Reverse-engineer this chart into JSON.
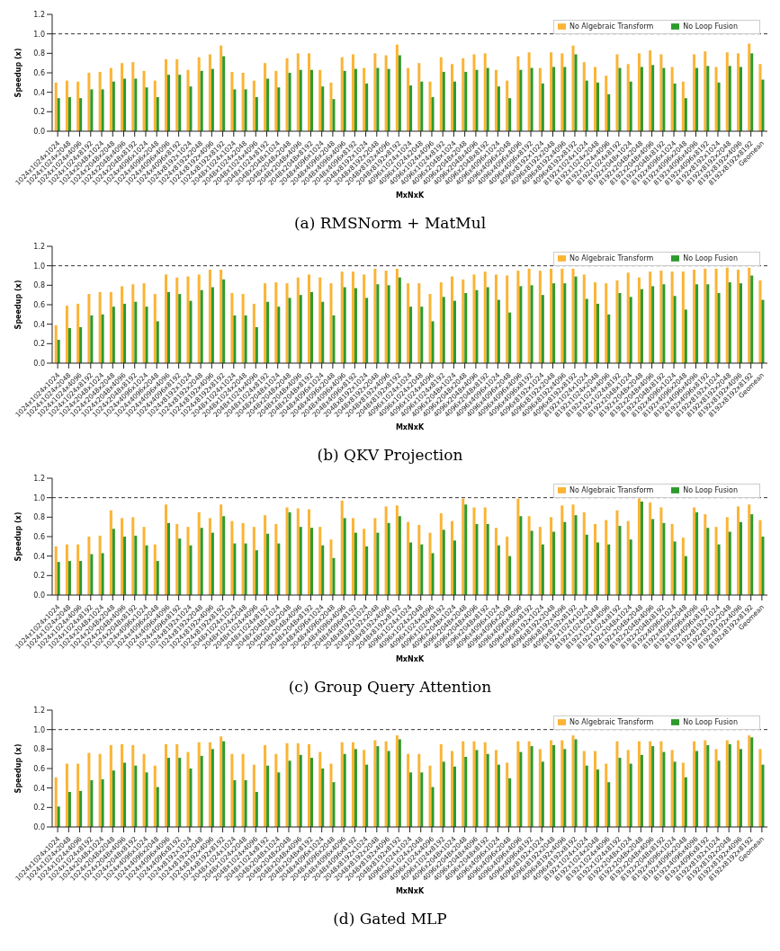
{
  "chart_data": [
    {
      "type": "bar",
      "title": "(a) RMSNorm + MatMul",
      "xlabel": "MxNxK",
      "ylabel": "Speedup (x)",
      "legend": "top right",
      "grid": false,
      "categories": [
        "1024x1024x1024",
        "1024x1024x2048",
        "1024x1024x4096",
        "1024x1024x8192",
        "1024x2048x1024",
        "1024x2048x2048",
        "1024x2048x4096",
        "1024x2048x8192",
        "1024x4096x1024",
        "1024x4096x2048",
        "1024x4096x4096",
        "1024x4096x8192",
        "1024x8192x1024",
        "1024x8192x2048",
        "1024x8192x4096",
        "1024x8192x8192",
        "2048x1024x1024",
        "2048x1024x2048",
        "2048x1024x4096",
        "2048x1024x8192",
        "2048x2048x1024",
        "2048x2048x2048",
        "2048x2048x4096",
        "2048x2048x8192",
        "2048x4096x1024",
        "2048x4096x2048",
        "2048x4096x4096",
        "2048x4096x8192",
        "2048x8192x1024",
        "2048x8192x2048",
        "2048x8192x4096",
        "2048x8192x8192",
        "4096x1024x1024",
        "4096x1024x2048",
        "4096x1024x4096",
        "4096x1024x8192",
        "4096x2048x1024",
        "4096x2048x2048",
        "4096x2048x4096",
        "4096x2048x8192",
        "4096x4096x1024",
        "4096x4096x2048",
        "4096x4096x4096",
        "4096x4096x8192",
        "4096x8192x1024",
        "4096x8192x2048",
        "4096x8192x4096",
        "4096x8192x8192",
        "8192x1024x1024",
        "8192x1024x2048",
        "8192x1024x4096",
        "8192x1024x8192",
        "8192x2048x1024",
        "8192x2048x2048",
        "8192x2048x4096",
        "8192x2048x8192",
        "8192x4096x1024",
        "8192x4096x2048",
        "8192x4096x4096",
        "8192x4096x8192",
        "8192x8192x1024",
        "8192x8192x2048",
        "8192x8192x4096",
        "8192x8192x8192",
        "Geomean"
      ],
      "series": [
        {
          "name": "No Algebraic Transform",
          "color": "#fbb434",
          "values": [
            0.5,
            0.52,
            0.51,
            0.6,
            0.61,
            0.65,
            0.7,
            0.71,
            0.62,
            0.52,
            0.74,
            0.74,
            0.63,
            0.76,
            0.79,
            0.88,
            0.61,
            0.6,
            0.52,
            0.7,
            0.62,
            0.75,
            0.8,
            0.8,
            0.63,
            0.5,
            0.76,
            0.79,
            0.65,
            0.8,
            0.78,
            0.89,
            0.65,
            0.7,
            0.51,
            0.76,
            0.69,
            0.75,
            0.79,
            0.8,
            0.63,
            0.52,
            0.77,
            0.81,
            0.65,
            0.81,
            0.8,
            0.88,
            0.71,
            0.66,
            0.57,
            0.79,
            0.69,
            0.8,
            0.83,
            0.79,
            0.66,
            0.51,
            0.79,
            0.82,
            0.66,
            0.81,
            0.8,
            0.9,
            0.69
          ]
        },
        {
          "name": "No Loop Fusion",
          "color": "#2e9a2e",
          "values": [
            0.34,
            0.35,
            0.34,
            0.43,
            0.43,
            0.51,
            0.54,
            0.54,
            0.45,
            0.35,
            0.58,
            0.58,
            0.46,
            0.62,
            0.64,
            0.77,
            0.43,
            0.43,
            0.35,
            0.54,
            0.45,
            0.6,
            0.63,
            0.63,
            0.46,
            0.33,
            0.62,
            0.64,
            0.49,
            0.65,
            0.64,
            0.78,
            0.47,
            0.51,
            0.35,
            0.61,
            0.51,
            0.61,
            0.63,
            0.65,
            0.46,
            0.34,
            0.63,
            0.65,
            0.49,
            0.66,
            0.66,
            0.79,
            0.52,
            0.5,
            0.38,
            0.65,
            0.51,
            0.66,
            0.68,
            0.65,
            0.49,
            0.34,
            0.65,
            0.67,
            0.5,
            0.67,
            0.66,
            0.8,
            0.53
          ]
        }
      ],
      "ylim": [
        0,
        1.2
      ],
      "yticks": [
        {
          "value": 0,
          "label": "0.0"
        },
        0.2,
        0.4,
        0.6,
        0.8,
        {
          "value": 1,
          "label": "1.0"
        },
        {
          "value": 1.2,
          "label": "1.2"
        }
      ],
      "ref_lines": [
        {
          "axis": "y",
          "value": 1,
          "color": "#333333",
          "line_style": "dashed"
        }
      ]
    },
    {
      "type": "bar",
      "title": "(b) QKV Projection",
      "xlabel": "MxNxK",
      "ylabel": "Speedup (x)",
      "legend": "top right",
      "grid": false,
      "categories": [
        "1024x1024x1024",
        "1024x1024x2048",
        "1024x1024x4096",
        "1024x1024x8192",
        "1024x2048x1024",
        "1024x2048x2048",
        "1024x2048x4096",
        "1024x2048x8192",
        "1024x4096x1024",
        "1024x4096x2048",
        "1024x4096x4096",
        "1024x4096x8192",
        "1024x8192x1024",
        "1024x8192x2048",
        "1024x8192x4096",
        "1024x8192x8192",
        "2048x1024x1024",
        "2048x1024x2048",
        "2048x1024x4096",
        "2048x1024x8192",
        "2048x2048x1024",
        "2048x2048x2048",
        "2048x2048x4096",
        "2048x2048x8192",
        "2048x4096x1024",
        "2048x4096x2048",
        "2048x4096x4096",
        "2048x4096x8192",
        "2048x8192x1024",
        "2048x8192x2048",
        "2048x8192x4096",
        "2048x8192x8192",
        "4096x1024x1024",
        "4096x1024x2048",
        "4096x1024x4096",
        "4096x1024x8192",
        "4096x2048x1024",
        "4096x2048x2048",
        "4096x2048x4096",
        "4096x2048x8192",
        "4096x4096x1024",
        "4096x4096x2048",
        "4096x4096x4096",
        "4096x4096x8192",
        "4096x8192x1024",
        "4096x8192x2048",
        "4096x8192x4096",
        "4096x8192x8192",
        "8192x1024x1024",
        "8192x1024x2048",
        "8192x1024x4096",
        "8192x1024x8192",
        "8192x2048x1024",
        "8192x2048x2048",
        "8192x2048x4096",
        "8192x2048x8192",
        "8192x4096x1024",
        "8192x4096x2048",
        "8192x4096x4096",
        "8192x4096x8192",
        "8192x8192x1024",
        "8192x8192x2048",
        "8192x8192x4096",
        "8192x8192x8192",
        "Geomean"
      ],
      "series": [
        {
          "name": "No Algebraic Transform",
          "color": "#fbb434",
          "values": [
            0.39,
            0.59,
            0.61,
            0.71,
            0.73,
            0.73,
            0.79,
            0.81,
            0.82,
            0.71,
            0.91,
            0.88,
            0.89,
            0.91,
            0.96,
            0.96,
            0.72,
            0.71,
            0.61,
            0.82,
            0.83,
            0.82,
            0.88,
            0.91,
            0.88,
            0.82,
            0.94,
            0.94,
            0.91,
            0.97,
            0.95,
            0.97,
            0.82,
            0.82,
            0.71,
            0.83,
            0.89,
            0.86,
            0.91,
            0.94,
            0.91,
            0.9,
            0.95,
            0.97,
            0.95,
            0.97,
            0.97,
            0.97,
            0.91,
            0.83,
            0.82,
            0.85,
            0.93,
            0.88,
            0.94,
            0.95,
            0.94,
            0.94,
            0.96,
            0.97,
            0.97,
            0.98,
            0.96,
            0.98,
            0.85
          ]
        },
        {
          "name": "No Loop Fusion",
          "color": "#2e9a2e",
          "values": [
            0.24,
            0.36,
            0.37,
            0.49,
            0.5,
            0.58,
            0.61,
            0.63,
            0.58,
            0.43,
            0.73,
            0.71,
            0.64,
            0.75,
            0.78,
            0.86,
            0.49,
            0.49,
            0.37,
            0.63,
            0.58,
            0.67,
            0.7,
            0.73,
            0.63,
            0.49,
            0.78,
            0.77,
            0.67,
            0.81,
            0.8,
            0.88,
            0.58,
            0.58,
            0.43,
            0.68,
            0.64,
            0.72,
            0.75,
            0.78,
            0.65,
            0.52,
            0.79,
            0.8,
            0.7,
            0.82,
            0.82,
            0.89,
            0.66,
            0.61,
            0.5,
            0.72,
            0.68,
            0.76,
            0.79,
            0.81,
            0.69,
            0.55,
            0.81,
            0.81,
            0.72,
            0.83,
            0.82,
            0.9,
            0.65
          ]
        }
      ],
      "ylim": [
        0,
        1.2
      ],
      "yticks": [
        {
          "value": 0,
          "label": "0.0"
        },
        0.2,
        0.4,
        0.6,
        0.8,
        {
          "value": 1,
          "label": "1.0"
        },
        {
          "value": 1.2,
          "label": "1.2"
        }
      ],
      "ref_lines": [
        {
          "axis": "y",
          "value": 1,
          "color": "#333333",
          "line_style": "dashed"
        }
      ]
    },
    {
      "type": "bar",
      "title": "(c) Group Query Attention",
      "xlabel": "MxNxK",
      "ylabel": "Speedup (x)",
      "legend": "top right",
      "grid": false,
      "categories": [
        "1024x1024x1024",
        "1024x1024x2048",
        "1024x1024x4096",
        "1024x1024x8192",
        "1024x2048x1024",
        "1024x2048x2048",
        "1024x2048x4096",
        "1024x2048x8192",
        "1024x4096x1024",
        "1024x4096x2048",
        "1024x4096x4096",
        "1024x4096x8192",
        "1024x8192x1024",
        "1024x8192x2048",
        "1024x8192x4096",
        "1024x8192x8192",
        "2048x1024x1024",
        "2048x1024x2048",
        "2048x1024x4096",
        "2048x1024x8192",
        "2048x2048x1024",
        "2048x2048x2048",
        "2048x2048x4096",
        "2048x2048x8192",
        "2048x4096x1024",
        "2048x4096x2048",
        "2048x4096x4096",
        "2048x4096x8192",
        "2048x8192x1024",
        "2048x8192x2048",
        "2048x8192x4096",
        "2048x8192x8192",
        "4096x1024x1024",
        "4096x1024x2048",
        "4096x1024x4096",
        "4096x1024x8192",
        "4096x2048x1024",
        "4096x2048x2048",
        "4096x2048x4096",
        "4096x2048x8192",
        "4096x4096x1024",
        "4096x4096x2048",
        "4096x4096x4096",
        "4096x4096x8192",
        "4096x8192x1024",
        "4096x8192x2048",
        "4096x8192x4096",
        "4096x8192x8192",
        "8192x1024x1024",
        "8192x1024x2048",
        "8192x1024x4096",
        "8192x1024x8192",
        "8192x2048x1024",
        "8192x2048x2048",
        "8192x2048x4096",
        "8192x2048x8192",
        "8192x4096x1024",
        "8192x4096x2048",
        "8192x4096x4096",
        "8192x4096x8192",
        "8192x8192x1024",
        "8192x8192x2048",
        "8192x8192x4096",
        "8192x8192x8192",
        "Geomean"
      ],
      "series": [
        {
          "name": "No Algebraic Transform",
          "color": "#fbb434",
          "values": [
            0.5,
            0.52,
            0.52,
            0.6,
            0.61,
            0.87,
            0.79,
            0.8,
            0.7,
            0.52,
            0.93,
            0.73,
            0.7,
            0.85,
            0.79,
            0.93,
            0.76,
            0.74,
            0.7,
            0.82,
            0.73,
            0.9,
            0.89,
            0.88,
            0.7,
            0.57,
            0.97,
            0.79,
            0.68,
            0.79,
            0.91,
            0.92,
            0.75,
            0.72,
            0.64,
            0.84,
            0.76,
            0.99,
            0.9,
            0.9,
            0.69,
            0.6,
            0.99,
            0.81,
            0.7,
            0.8,
            0.92,
            0.93,
            0.85,
            0.73,
            0.77,
            0.87,
            0.76,
            0.99,
            0.95,
            0.9,
            0.73,
            0.59,
            0.9,
            0.83,
            0.7,
            0.8,
            0.91,
            0.93,
            0.77
          ]
        },
        {
          "name": "No Loop Fusion",
          "color": "#2e9a2e",
          "values": [
            0.34,
            0.35,
            0.35,
            0.42,
            0.43,
            0.68,
            0.6,
            0.61,
            0.51,
            0.35,
            0.74,
            0.58,
            0.51,
            0.69,
            0.64,
            0.81,
            0.53,
            0.53,
            0.46,
            0.63,
            0.53,
            0.85,
            0.7,
            0.69,
            0.51,
            0.38,
            0.79,
            0.64,
            0.5,
            0.64,
            0.74,
            0.81,
            0.54,
            0.52,
            0.43,
            0.67,
            0.56,
            0.93,
            0.73,
            0.73,
            0.51,
            0.4,
            0.81,
            0.66,
            0.52,
            0.65,
            0.75,
            0.82,
            0.62,
            0.54,
            0.52,
            0.71,
            0.57,
            0.96,
            0.78,
            0.74,
            0.55,
            0.4,
            0.85,
            0.69,
            0.52,
            0.65,
            0.75,
            0.83,
            0.6
          ]
        }
      ],
      "ylim": [
        0,
        1.2
      ],
      "yticks": [
        {
          "value": 0,
          "label": "0.0"
        },
        0.2,
        0.4,
        0.6,
        0.8,
        {
          "value": 1,
          "label": "1.0"
        },
        {
          "value": 1.2,
          "label": "1.2"
        }
      ],
      "ref_lines": [
        {
          "axis": "y",
          "value": 1,
          "color": "#333333",
          "line_style": "dashed"
        }
      ]
    },
    {
      "type": "bar",
      "title": "(d) Gated MLP",
      "xlabel": "MxNxK",
      "ylabel": "Speedup (x)",
      "legend": "top right",
      "grid": false,
      "categories": [
        "1024x1024x1024",
        "1024x1024x2048",
        "1024x1024x4096",
        "1024x1024x8192",
        "1024x2048x1024",
        "1024x2048x2048",
        "1024x2048x4096",
        "1024x2048x8192",
        "1024x4096x1024",
        "1024x4096x2048",
        "1024x4096x4096",
        "1024x4096x8192",
        "1024x8192x1024",
        "1024x8192x2048",
        "1024x8192x4096",
        "1024x8192x8192",
        "2048x1024x1024",
        "2048x1024x2048",
        "2048x1024x4096",
        "2048x1024x8192",
        "2048x2048x1024",
        "2048x2048x2048",
        "2048x2048x4096",
        "2048x2048x8192",
        "2048x4096x1024",
        "2048x4096x2048",
        "2048x4096x4096",
        "2048x4096x8192",
        "2048x8192x1024",
        "2048x8192x2048",
        "2048x8192x4096",
        "2048x8192x8192",
        "4096x1024x1024",
        "4096x1024x2048",
        "4096x1024x4096",
        "4096x1024x8192",
        "4096x2048x1024",
        "4096x2048x2048",
        "4096x2048x4096",
        "4096x2048x8192",
        "4096x4096x1024",
        "4096x4096x2048",
        "4096x4096x4096",
        "4096x4096x8192",
        "4096x8192x1024",
        "4096x8192x2048",
        "4096x8192x4096",
        "4096x8192x8192",
        "8192x1024x1024",
        "8192x1024x2048",
        "8192x1024x4096",
        "8192x1024x8192",
        "8192x2048x1024",
        "8192x2048x2048",
        "8192x2048x4096",
        "8192x2048x8192",
        "8192x4096x1024",
        "8192x4096x2048",
        "8192x4096x4096",
        "8192x4096x8192",
        "8192x8192x1024",
        "8192x8192x2048",
        "8192x8192x4096",
        "8192x8192x8192",
        "Geomean"
      ],
      "series": [
        {
          "name": "No Algebraic Transform",
          "color": "#fbb434",
          "values": [
            0.51,
            0.65,
            0.65,
            0.76,
            0.75,
            0.84,
            0.85,
            0.84,
            0.75,
            0.63,
            0.85,
            0.85,
            0.77,
            0.87,
            0.87,
            0.93,
            0.75,
            0.75,
            0.64,
            0.84,
            0.75,
            0.86,
            0.86,
            0.85,
            0.77,
            0.65,
            0.87,
            0.87,
            0.79,
            0.89,
            0.88,
            0.94,
            0.75,
            0.75,
            0.63,
            0.85,
            0.78,
            0.88,
            0.88,
            0.87,
            0.79,
            0.66,
            0.88,
            0.88,
            0.8,
            0.89,
            0.89,
            0.94,
            0.78,
            0.78,
            0.65,
            0.88,
            0.79,
            0.88,
            0.88,
            0.88,
            0.79,
            0.66,
            0.88,
            0.89,
            0.8,
            0.89,
            0.89,
            0.94,
            0.8
          ]
        },
        {
          "name": "No Loop Fusion",
          "color": "#2e9a2e",
          "values": [
            0.21,
            0.36,
            0.37,
            0.48,
            0.49,
            0.58,
            0.66,
            0.63,
            0.56,
            0.41,
            0.71,
            0.71,
            0.6,
            0.73,
            0.8,
            0.88,
            0.48,
            0.48,
            0.36,
            0.63,
            0.56,
            0.68,
            0.74,
            0.71,
            0.6,
            0.46,
            0.75,
            0.8,
            0.64,
            0.83,
            0.78,
            0.9,
            0.56,
            0.56,
            0.41,
            0.67,
            0.62,
            0.72,
            0.79,
            0.75,
            0.64,
            0.5,
            0.77,
            0.83,
            0.67,
            0.84,
            0.8,
            0.9,
            0.63,
            0.59,
            0.46,
            0.71,
            0.65,
            0.74,
            0.83,
            0.77,
            0.67,
            0.51,
            0.78,
            0.84,
            0.68,
            0.85,
            0.8,
            0.92,
            0.64
          ]
        }
      ],
      "ylim": [
        0,
        1.2
      ],
      "yticks": [
        {
          "value": 0,
          "label": "0.0"
        },
        0.2,
        0.4,
        0.6,
        0.8,
        {
          "value": 1,
          "label": "1.0"
        },
        {
          "value": 1.2,
          "label": "1.2"
        }
      ],
      "ref_lines": [
        {
          "axis": "y",
          "value": 1,
          "color": "#333333",
          "line_style": "dashed"
        }
      ]
    }
  ]
}
